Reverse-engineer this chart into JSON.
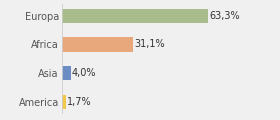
{
  "categories": [
    "America",
    "Asia",
    "Africa",
    "Europa"
  ],
  "values": [
    1.7,
    4.0,
    31.1,
    63.3
  ],
  "bar_colors": [
    "#f2c84b",
    "#6b8dc4",
    "#e8a87c",
    "#a8bc8c"
  ],
  "labels": [
    "1,7%",
    "4,0%",
    "31,1%",
    "63,3%"
  ],
  "xlim": [
    0,
    80
  ],
  "background_color": "#f0f0f0",
  "bar_height": 0.5,
  "fontsize_labels": 7.0,
  "fontsize_ticks": 7.0
}
